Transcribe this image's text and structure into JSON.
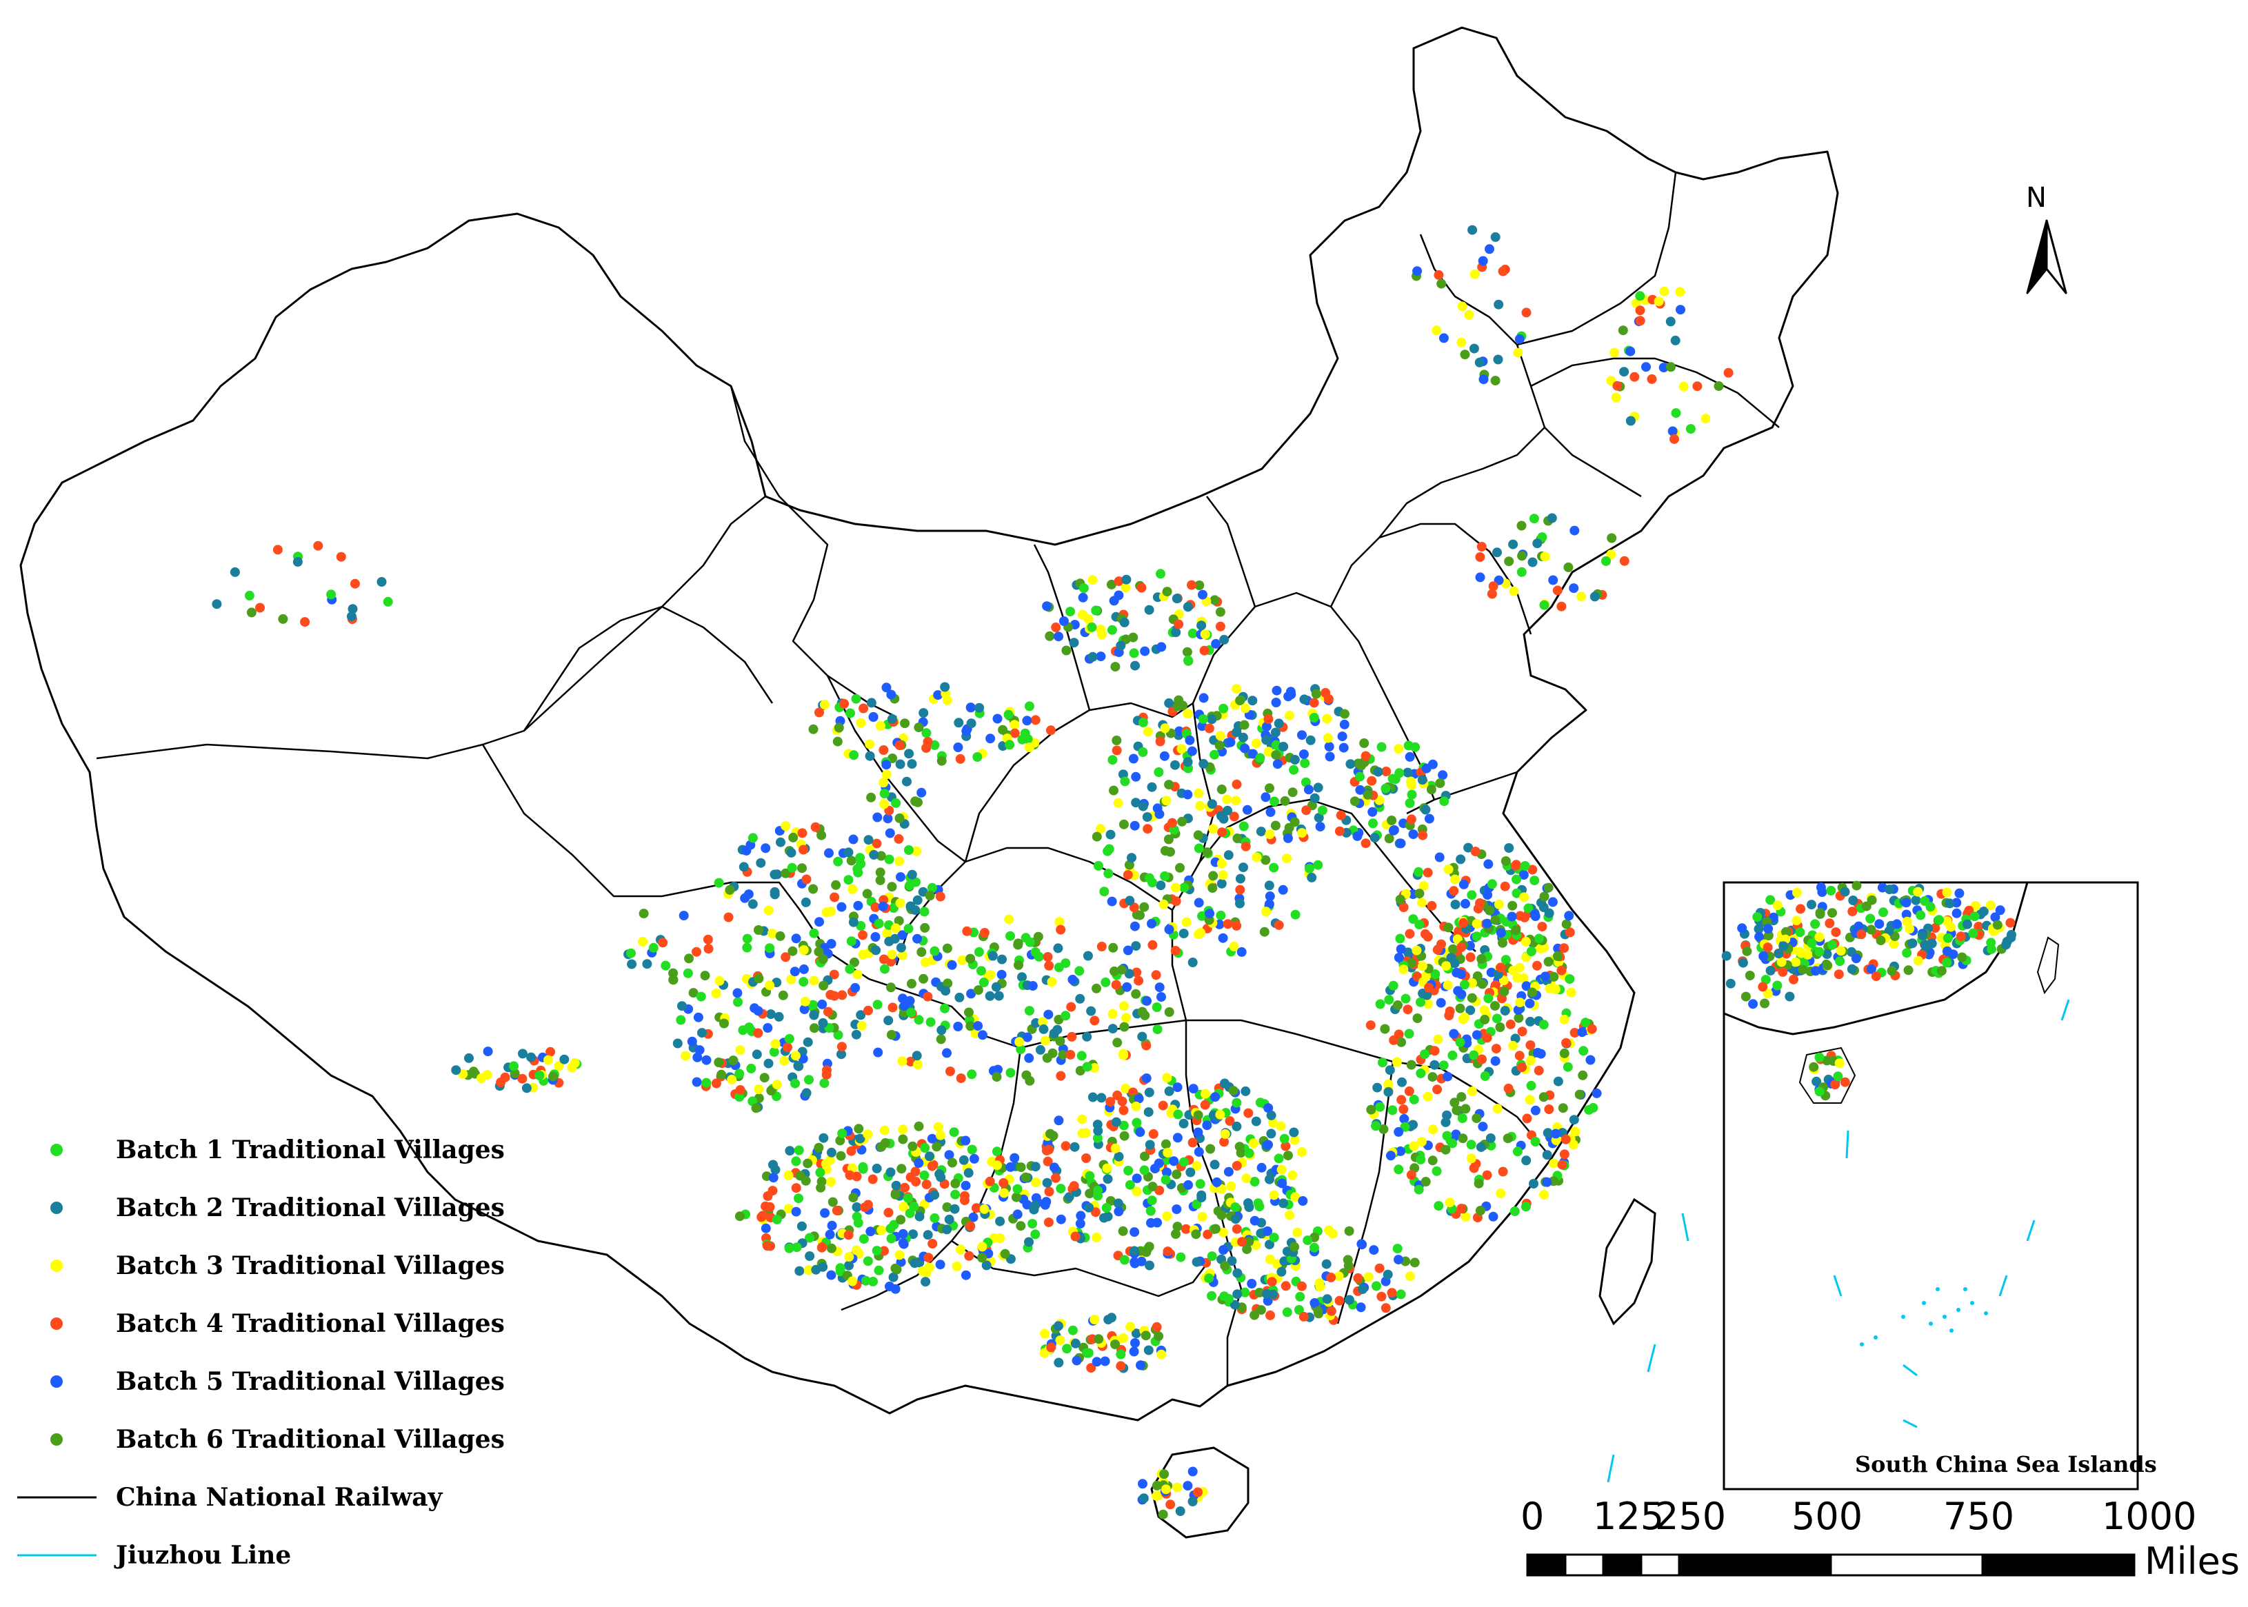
{
  "legend": {
    "items": [
      {
        "label": "Batch 1 Traditional Villages",
        "color": "#22dd22",
        "kind": "dot"
      },
      {
        "label": "Batch 2 Traditional Villages",
        "color": "#1a7f9c",
        "kind": "dot"
      },
      {
        "label": "Batch 3 Traditional Villages",
        "color": "#ffff00",
        "kind": "dot"
      },
      {
        "label": "Batch 4 Traditional Villages",
        "color": "#ff4a1c",
        "kind": "dot"
      },
      {
        "label": "Batch 5 Traditional Villages",
        "color": "#1f5cff",
        "kind": "dot"
      },
      {
        "label": "Batch 6 Traditional Villages",
        "color": "#4a9e1a",
        "kind": "dot"
      },
      {
        "label": "China National Railway",
        "color": "#000000",
        "kind": "line"
      },
      {
        "label": "Jiuzhou Line",
        "color": "#00c8f0",
        "kind": "line"
      }
    ]
  },
  "north_arrow": {
    "label": "N",
    "icon": "north-arrow-icon"
  },
  "scale_bar": {
    "ticks": [
      "0",
      "125",
      "250",
      "500",
      "750",
      "1000"
    ],
    "unit": "Miles"
  },
  "inset": {
    "label": "South China Sea Islands"
  }
}
